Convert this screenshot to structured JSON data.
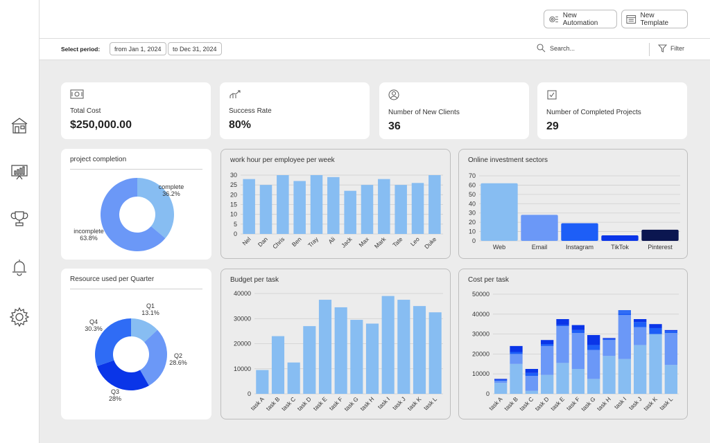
{
  "sidebar": {
    "items": [
      {
        "icon": "home-icon"
      },
      {
        "icon": "analytics-icon"
      },
      {
        "icon": "trophy-icon"
      },
      {
        "icon": "bell-icon"
      },
      {
        "icon": "settings-icon"
      }
    ]
  },
  "topbar": {
    "new_automation_label": "New Automation",
    "new_template_label": "New Template"
  },
  "filterbar": {
    "period_label": "Select period:",
    "from_date": "from Jan 1, 2024",
    "to_date": "to Dec 31, 2024",
    "search_placeholder": "Search...",
    "filter_label": "Filter"
  },
  "kpis": [
    {
      "label": "Total Cost",
      "value": "$250,000.00",
      "icon": "money-icon"
    },
    {
      "label": "Success Rate",
      "value": "80%",
      "icon": "growth-icon"
    },
    {
      "label": "Number of New Clients",
      "value": "36",
      "icon": "user-icon"
    },
    {
      "label": "Number of Completed Projects",
      "value": "29",
      "icon": "checkbox-icon"
    }
  ],
  "colors": {
    "light_blue": "#87bdf2",
    "mid_blue": "#6b98f7",
    "blue": "#1d5ef7",
    "deep_blue": "#0a35e8",
    "navy": "#0b1650",
    "bright_blue": "#2f6cf5"
  },
  "chart_data": [
    {
      "type": "pie",
      "title": "project completion",
      "slices": [
        {
          "name": "complete",
          "pct": "36.2%",
          "value": 36.2,
          "color": "#87bdf2"
        },
        {
          "name": "incomplete",
          "pct": "63.8%",
          "value": 63.8,
          "color": "#6b98f7"
        }
      ]
    },
    {
      "type": "bar",
      "title": "work hour per employee per week",
      "categories": [
        "Nel",
        "Dan",
        "Chris",
        "Ben",
        "Tray",
        "Ali",
        "Jack",
        "Max",
        "Mark",
        "Tate",
        "Leo",
        "Duke"
      ],
      "values": [
        28,
        25,
        30,
        27,
        30,
        29,
        22,
        25,
        28,
        25,
        26,
        30
      ],
      "ylim": [
        0,
        30
      ],
      "yticks": [
        "0",
        "5",
        "10",
        "15",
        "20",
        "25",
        "30"
      ],
      "color": "#87bdf2"
    },
    {
      "type": "bar",
      "title": "Online investment sectors",
      "categories": [
        "Web",
        "Email",
        "Instagram",
        "TikTok",
        "Pinterest"
      ],
      "values": [
        62,
        28,
        19,
        6,
        12
      ],
      "colors": [
        "#87bdf2",
        "#6b98f7",
        "#1d5ef7",
        "#0a35e8",
        "#0b1650"
      ],
      "ylim": [
        0,
        70
      ],
      "yticks": [
        "0",
        "10",
        "20",
        "30",
        "40",
        "50",
        "60",
        "70"
      ]
    },
    {
      "type": "pie",
      "title": "Resource used per Quarter",
      "slices": [
        {
          "name": "Q1",
          "pct": "13.1%",
          "value": 13.1,
          "color": "#87bdf2"
        },
        {
          "name": "Q2",
          "pct": "28.6%",
          "value": 28.6,
          "color": "#6b98f7"
        },
        {
          "name": "Q3",
          "pct": "28%",
          "value": 28.0,
          "color": "#0a35e8"
        },
        {
          "name": "Q4",
          "pct": "30.3%",
          "value": 30.3,
          "color": "#2f6cf5"
        }
      ]
    },
    {
      "type": "bar",
      "title": "Budget per task",
      "categories": [
        "task A",
        "task B",
        "task C",
        "task D",
        "task E",
        "task F",
        "task G",
        "task H",
        "task I",
        "task J",
        "task K",
        "task L"
      ],
      "values": [
        9500,
        23000,
        12500,
        27000,
        37500,
        34500,
        29500,
        28000,
        39000,
        37500,
        35000,
        32500
      ],
      "ylim": [
        0,
        40000
      ],
      "yticks": [
        "0",
        "10000",
        "20000",
        "30000",
        "40000"
      ],
      "color": "#87bdf2"
    },
    {
      "type": "bar",
      "title": "Cost per task",
      "stacked": true,
      "categories": [
        "task A",
        "task B",
        "task C",
        "task D",
        "task E",
        "task F",
        "task G",
        "task H",
        "task I",
        "task J",
        "task K",
        "task L"
      ],
      "series": [
        {
          "values": [
            5500,
            15000,
            1500,
            9500,
            15500,
            12500,
            7500,
            19000,
            17500,
            24500,
            30000,
            14500
          ],
          "color": "#87bdf2"
        },
        {
          "values": [
            1000,
            5000,
            7500,
            14500,
            18500,
            18000,
            14500,
            8000,
            22000,
            9000,
            0,
            16000
          ],
          "color": "#6b98f7"
        },
        {
          "values": [
            500,
            1000,
            1500,
            1000,
            500,
            1500,
            2500,
            500,
            1000,
            2500,
            3000,
            1000
          ],
          "color": "#1d5ef7"
        },
        {
          "values": [
            500,
            3000,
            2000,
            2000,
            3000,
            2500,
            5000,
            500,
            0,
            1500,
            2000,
            500
          ],
          "color": "#0a35e8"
        },
        {
          "values": [
            0,
            0,
            0,
            0,
            0,
            0,
            0,
            0,
            1500,
            0,
            0,
            0
          ],
          "color": "#2f6cf5"
        }
      ],
      "ylim": [
        0,
        50000
      ],
      "yticks": [
        "0",
        "10000",
        "20000",
        "30000",
        "40000",
        "50000"
      ]
    }
  ]
}
